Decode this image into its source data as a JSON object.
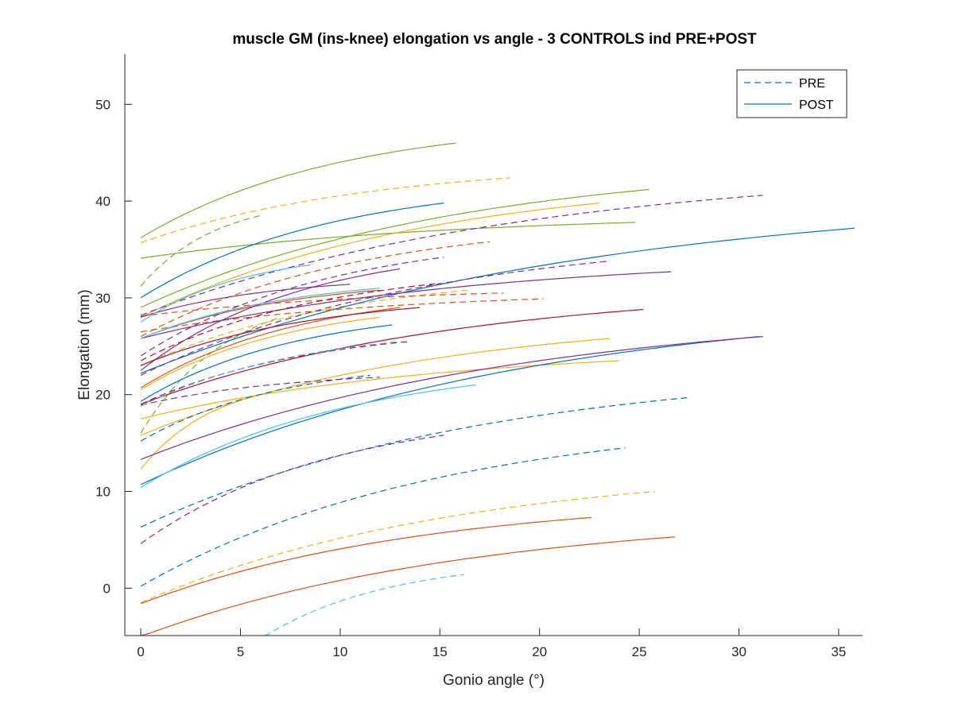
{
  "chart_data": {
    "type": "line",
    "title": "muscle GM (ins-knee) elongation vs angle - 3 CONTROLS ind PRE+POST",
    "xlabel": "Gonio angle (°)",
    "ylabel": "Elongation (mm)",
    "xlim": [
      -0.8,
      36.2
    ],
    "ylim": [
      -4.9,
      55.2
    ],
    "xticks": [
      0,
      5,
      10,
      15,
      20,
      25,
      30,
      35
    ],
    "yticks": [
      0,
      10,
      20,
      30,
      40,
      50
    ],
    "grid": false,
    "legend": {
      "position": "top-right",
      "entries": [
        {
          "label": "PRE",
          "style": "dashed",
          "color": "#0072BD"
        },
        {
          "label": "POST",
          "style": "solid",
          "color": "#0072BD"
        }
      ]
    },
    "series": [
      {
        "style": "solid",
        "color": "#77AC30",
        "x0": 0,
        "x1": 15.8,
        "y0": 36.2,
        "y1": 46.0
      },
      {
        "style": "solid",
        "color": "#77AC30",
        "x0": 0,
        "x1": 25.5,
        "y0": 29.0,
        "y1": 41.2
      },
      {
        "style": "solid",
        "color": "#77AC30",
        "x0": 0,
        "x1": 24.8,
        "y0": 34.1,
        "y1": 37.8
      },
      {
        "style": "dashed",
        "color": "#77AC30",
        "x0": 0,
        "x1": 6.0,
        "y0": 31.2,
        "y1": 38.5
      },
      {
        "style": "dashed",
        "color": "#77AC30",
        "x0": 0,
        "x1": 7.0,
        "y0": 16.0,
        "y1": 28.0
      },
      {
        "style": "dashed",
        "color": "#EDB120",
        "x0": 0,
        "x1": 18.5,
        "y0": 35.7,
        "y1": 42.4
      },
      {
        "style": "dashed",
        "color": "#EDB120",
        "x0": 0,
        "x1": 25.8,
        "y0": -1.5,
        "y1": 10.0
      },
      {
        "style": "dashed",
        "color": "#EDB120",
        "x0": 0,
        "x1": 16.5,
        "y0": 23.0,
        "y1": 30.8
      },
      {
        "style": "solid",
        "color": "#EDB120",
        "x0": 0,
        "x1": 23.0,
        "y0": 28.0,
        "y1": 39.8
      },
      {
        "style": "solid",
        "color": "#EDB120",
        "x0": 0,
        "x1": 24.0,
        "y0": 17.5,
        "y1": 23.5
      },
      {
        "style": "solid",
        "color": "#EDB120",
        "x0": 0,
        "x1": 23.5,
        "y0": 15.8,
        "y1": 25.8
      },
      {
        "style": "solid",
        "color": "#EDB120",
        "x0": 0,
        "x1": 12.0,
        "y0": 20.5,
        "y1": 28.0
      },
      {
        "style": "solid",
        "color": "#EDB120",
        "x0": 0,
        "x1": 6.0,
        "y0": 12.3,
        "y1": 20.0
      },
      {
        "style": "dashed",
        "color": "#0072BD",
        "x0": 0,
        "x1": 27.5,
        "y0": 6.3,
        "y1": 19.7
      },
      {
        "style": "dashed",
        "color": "#0072BD",
        "x0": 0,
        "x1": 24.3,
        "y0": 0.2,
        "y1": 14.5
      },
      {
        "style": "dashed",
        "color": "#0072BD",
        "x0": 0,
        "x1": 11.5,
        "y0": 15.2,
        "y1": 22.0
      },
      {
        "style": "solid",
        "color": "#0072BD",
        "x0": 0,
        "x1": 35.8,
        "y0": 22.2,
        "y1": 37.2
      },
      {
        "style": "solid",
        "color": "#0072BD",
        "x0": 0,
        "x1": 15.2,
        "y0": 30.0,
        "y1": 39.8
      },
      {
        "style": "solid",
        "color": "#0072BD",
        "x0": 0,
        "x1": 31.0,
        "y0": 10.7,
        "y1": 26.0
      },
      {
        "style": "solid",
        "color": "#0072BD",
        "x0": 0,
        "x1": 12.6,
        "y0": 19.3,
        "y1": 27.2
      },
      {
        "style": "solid",
        "color": "#D95319",
        "x0": 0,
        "x1": 26.8,
        "y0": -5.0,
        "y1": 5.3
      },
      {
        "style": "solid",
        "color": "#D95319",
        "x0": 0,
        "x1": 22.6,
        "y0": -1.6,
        "y1": 7.3
      },
      {
        "style": "solid",
        "color": "#D95319",
        "x0": 0,
        "x1": 13.0,
        "y0": 20.7,
        "y1": 29.0
      },
      {
        "style": "solid",
        "color": "#D95319",
        "x0": 0,
        "x1": 12.0,
        "y0": 25.8,
        "y1": 30.8
      },
      {
        "style": "dashed",
        "color": "#D95319",
        "x0": 0,
        "x1": 17.5,
        "y0": 26.0,
        "y1": 35.8
      },
      {
        "style": "dashed",
        "color": "#D95319",
        "x0": 0,
        "x1": 18.2,
        "y0": 28.1,
        "y1": 30.5
      },
      {
        "style": "dashed",
        "color": "#D95319",
        "x0": 0,
        "x1": 20.2,
        "y0": 26.5,
        "y1": 29.9
      },
      {
        "style": "solid",
        "color": "#7E2F8E",
        "x0": 0,
        "x1": 26.6,
        "y0": 25.8,
        "y1": 32.7
      },
      {
        "style": "solid",
        "color": "#7E2F8E",
        "x0": 0,
        "x1": 31.2,
        "y0": 13.3,
        "y1": 26.0
      },
      {
        "style": "solid",
        "color": "#7E2F8E",
        "x0": 0,
        "x1": 13.0,
        "y0": 22.5,
        "y1": 33.0
      },
      {
        "style": "solid",
        "color": "#7E2F8E",
        "x0": 0,
        "x1": 10.5,
        "y0": 28.0,
        "y1": 31.4
      },
      {
        "style": "dashed",
        "color": "#7E2F8E",
        "x0": 0,
        "x1": 31.2,
        "y0": 28.2,
        "y1": 40.6
      },
      {
        "style": "dashed",
        "color": "#7E2F8E",
        "x0": 0,
        "x1": 23.5,
        "y0": 22.0,
        "y1": 33.8
      },
      {
        "style": "dashed",
        "color": "#7E2F8E",
        "x0": 0,
        "x1": 15.2,
        "y0": 4.6,
        "y1": 15.8
      },
      {
        "style": "dashed",
        "color": "#7E2F8E",
        "x0": 0,
        "x1": 15.2,
        "y0": 24.0,
        "y1": 34.2
      },
      {
        "style": "dashed",
        "color": "#7E2F8E",
        "x0": 0,
        "x1": 12.0,
        "y0": 18.9,
        "y1": 21.8
      },
      {
        "style": "solid",
        "color": "#A2142F",
        "x0": 0,
        "x1": 25.2,
        "y0": 19.0,
        "y1": 28.8
      },
      {
        "style": "solid",
        "color": "#A2142F",
        "x0": 0,
        "x1": 14.0,
        "y0": 23.0,
        "y1": 29.0
      },
      {
        "style": "dashed",
        "color": "#A2142F",
        "x0": 0,
        "x1": 15.0,
        "y0": 23.5,
        "y1": 31.5
      },
      {
        "style": "dashed",
        "color": "#A2142F",
        "x0": 0,
        "x1": 13.5,
        "y0": 19.0,
        "y1": 25.5
      },
      {
        "style": "solid",
        "color": "#4DBEEE",
        "x0": 0,
        "x1": 16.8,
        "y0": 10.4,
        "y1": 21.0
      },
      {
        "style": "solid",
        "color": "#4DBEEE",
        "x0": 0,
        "x1": 12.0,
        "y0": 25.8,
        "y1": 31.0
      },
      {
        "style": "solid",
        "color": "#4DBEEE",
        "x0": 0,
        "x1": 8.5,
        "y0": 27.5,
        "y1": 33.4
      },
      {
        "style": "dashed",
        "color": "#4DBEEE",
        "x0": 6.2,
        "x1": 16.2,
        "y0": -5.0,
        "y1": 1.4
      },
      {
        "style": "dashed",
        "color": "#4DBEEE",
        "x0": 0,
        "x1": 13.0,
        "y0": 18.8,
        "y1": 25.5
      }
    ]
  }
}
